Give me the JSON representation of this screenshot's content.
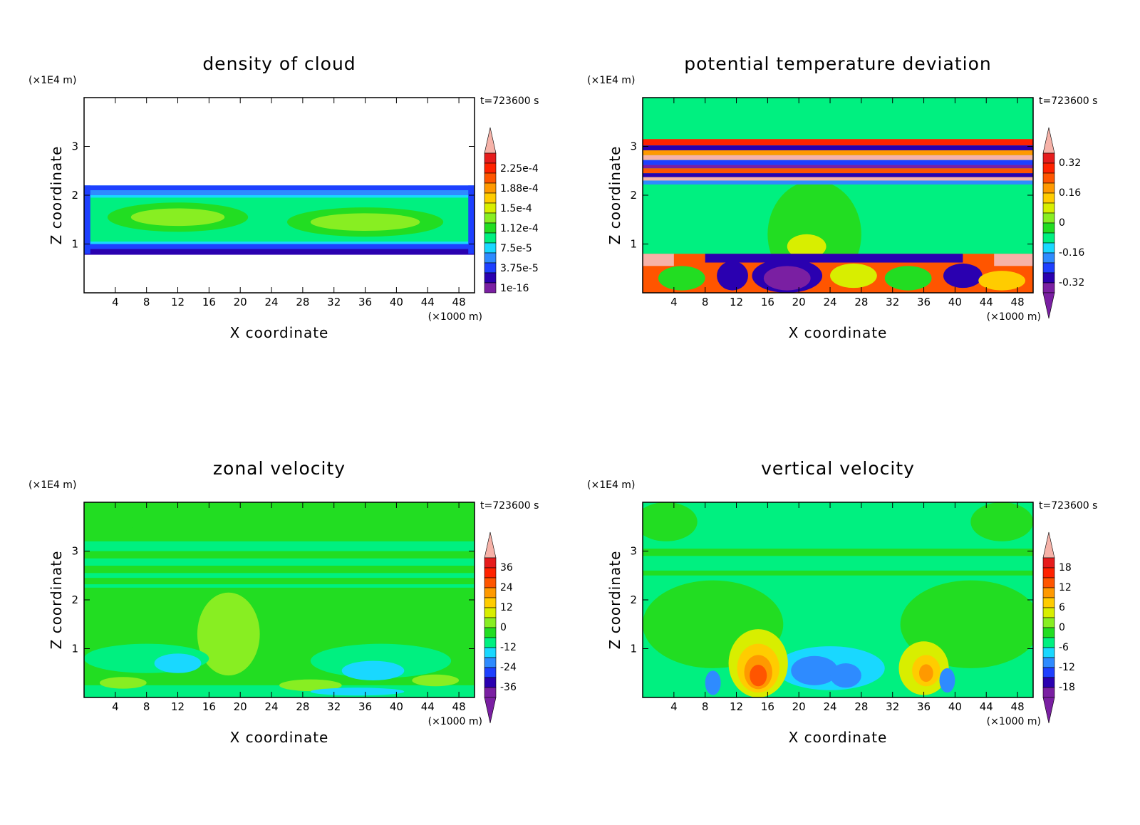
{
  "chart_data": [
    {
      "type": "heatmap",
      "title": "density of cloud",
      "xlabel": "X coordinate",
      "ylabel": "Z coordinate",
      "x_unit": "(×1000 m)",
      "y_unit": "(×1E4 m)",
      "time": "t=723600 s",
      "xlim": [
        0,
        50
      ],
      "ylim": [
        0,
        4
      ],
      "x_ticks": [
        "4",
        "8",
        "12",
        "16",
        "20",
        "24",
        "28",
        "32",
        "36",
        "40",
        "44",
        "48"
      ],
      "y_ticks": [
        "1",
        "2",
        "3"
      ],
      "colorbar_labels": [
        "2.25e-4",
        "1.88e-4",
        "1.5e-4",
        "1.12e-4",
        "7.5e-5",
        "3.75e-5",
        "1e-16"
      ],
      "field": "cloud"
    },
    {
      "type": "heatmap",
      "title": "potential temperature deviation",
      "xlabel": "X coordinate",
      "ylabel": "Z coordinate",
      "x_unit": "(×1000 m)",
      "y_unit": "(×1E4 m)",
      "time": "t=723600 s",
      "xlim": [
        0,
        50
      ],
      "ylim": [
        0,
        4
      ],
      "x_ticks": [
        "4",
        "8",
        "12",
        "16",
        "20",
        "24",
        "28",
        "32",
        "36",
        "40",
        "44",
        "48"
      ],
      "y_ticks": [
        "1",
        "2",
        "3"
      ],
      "colorbar_labels": [
        "0.32",
        "0.16",
        "0",
        "-0.16",
        "-0.32"
      ],
      "field": "theta"
    },
    {
      "type": "heatmap",
      "title": "zonal velocity",
      "xlabel": "X coordinate",
      "ylabel": "Z coordinate",
      "x_unit": "(×1000 m)",
      "y_unit": "(×1E4 m)",
      "time": "t=723600 s",
      "xlim": [
        0,
        50
      ],
      "ylim": [
        0,
        4
      ],
      "x_ticks": [
        "4",
        "8",
        "12",
        "16",
        "20",
        "24",
        "28",
        "32",
        "36",
        "40",
        "44",
        "48"
      ],
      "y_ticks": [
        "1",
        "2",
        "3"
      ],
      "colorbar_labels": [
        "36",
        "24",
        "12",
        "0",
        "-12",
        "-24",
        "-36"
      ],
      "field": "zonal"
    },
    {
      "type": "heatmap",
      "title": "vertical velocity",
      "xlabel": "X coordinate",
      "ylabel": "Z coordinate",
      "x_unit": "(×1000 m)",
      "y_unit": "(×1E4 m)",
      "time": "t=723600 s",
      "xlim": [
        0,
        50
      ],
      "ylim": [
        0,
        4
      ],
      "x_ticks": [
        "4",
        "8",
        "12",
        "16",
        "20",
        "24",
        "28",
        "32",
        "36",
        "40",
        "44",
        "48"
      ],
      "y_ticks": [
        "1",
        "2",
        "3"
      ],
      "colorbar_labels": [
        "18",
        "12",
        "6",
        "0",
        "-6",
        "-12",
        "-18"
      ],
      "field": "vertical"
    }
  ],
  "colors": {
    "palette": [
      "#7a1fa2",
      "#2a00b0",
      "#1e40ff",
      "#2e8bff",
      "#19d8ff",
      "#00f080",
      "#22dd22",
      "#88ee22",
      "#d8ee00",
      "#ffcc00",
      "#ff9900",
      "#ff5500",
      "#ff2200",
      "#e61c1c",
      "#f6b2a8"
    ],
    "background_field": "#00f080"
  }
}
